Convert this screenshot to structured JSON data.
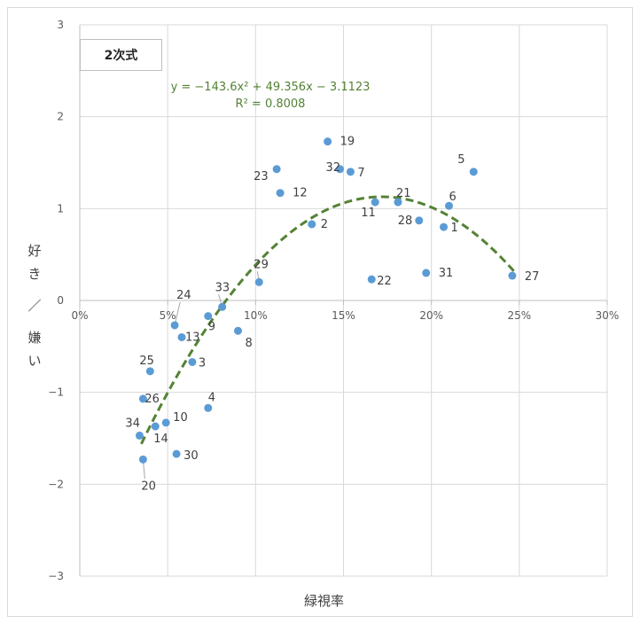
{
  "chart_data": {
    "type": "scatter",
    "title": "",
    "xlabel": "緑視率",
    "ylabel_chars": [
      "好",
      "き",
      "／",
      "嫌",
      "い"
    ],
    "xlim": [
      0,
      0.3
    ],
    "ylim": [
      -3,
      3
    ],
    "x_ticks": [
      0,
      0.05,
      0.1,
      0.15,
      0.2,
      0.25,
      0.3
    ],
    "x_tick_labels": [
      "0%",
      "5%",
      "10%",
      "15%",
      "20%",
      "25%",
      "30%"
    ],
    "y_ticks": [
      3,
      2,
      1,
      0,
      -1,
      -2,
      -3
    ],
    "y_tick_labels": [
      "3",
      "2",
      "1",
      "0",
      "−1",
      "−2",
      "−3"
    ],
    "grid": true,
    "model_label": "2次式",
    "trendline": {
      "type": "polynomial-2",
      "coefficients": [
        -143.6,
        49.356,
        -3.1123
      ],
      "x_range": [
        0.035,
        0.247
      ],
      "color": "#548235",
      "equation": "y = −143.6x² + 49.356x − 3.1123",
      "r2": "R² = 0.8008"
    },
    "point_color": "#5b9bd5",
    "points": [
      {
        "label": "1",
        "x": 0.207,
        "y": 0.8
      },
      {
        "label": "2",
        "x": 0.132,
        "y": 0.83
      },
      {
        "label": "3",
        "x": 0.064,
        "y": -0.67
      },
      {
        "label": "4",
        "x": 0.073,
        "y": -1.17
      },
      {
        "label": "5",
        "x": 0.224,
        "y": 1.4
      },
      {
        "label": "6",
        "x": 0.21,
        "y": 1.03
      },
      {
        "label": "7",
        "x": 0.154,
        "y": 1.4
      },
      {
        "label": "8",
        "x": 0.09,
        "y": -0.33
      },
      {
        "label": "9",
        "x": 0.073,
        "y": -0.17
      },
      {
        "label": "10",
        "x": 0.049,
        "y": -1.33
      },
      {
        "label": "11",
        "x": 0.168,
        "y": 1.07
      },
      {
        "label": "12",
        "x": 0.114,
        "y": 1.17
      },
      {
        "label": "13",
        "x": 0.058,
        "y": -0.4
      },
      {
        "label": "14",
        "x": 0.043,
        "y": -1.37
      },
      {
        "label": "19",
        "x": 0.141,
        "y": 1.73
      },
      {
        "label": "20",
        "x": 0.036,
        "y": -1.73
      },
      {
        "label": "21",
        "x": 0.181,
        "y": 1.07
      },
      {
        "label": "22",
        "x": 0.166,
        "y": 0.23
      },
      {
        "label": "23",
        "x": 0.112,
        "y": 1.43
      },
      {
        "label": "24",
        "x": 0.054,
        "y": -0.27
      },
      {
        "label": "25",
        "x": 0.04,
        "y": -0.77
      },
      {
        "label": "26",
        "x": 0.036,
        "y": -1.07
      },
      {
        "label": "27",
        "x": 0.246,
        "y": 0.27
      },
      {
        "label": "28",
        "x": 0.193,
        "y": 0.87
      },
      {
        "label": "29",
        "x": 0.102,
        "y": 0.2
      },
      {
        "label": "30",
        "x": 0.055,
        "y": -1.67
      },
      {
        "label": "31",
        "x": 0.197,
        "y": 0.3
      },
      {
        "label": "32",
        "x": 0.148,
        "y": 1.43
      },
      {
        "label": "33",
        "x": 0.081,
        "y": -0.07
      },
      {
        "label": "34",
        "x": 0.034,
        "y": -1.47
      }
    ]
  }
}
